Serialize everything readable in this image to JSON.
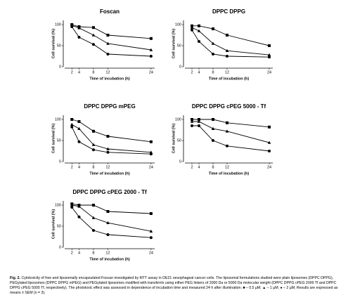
{
  "chart_data": [
    {
      "type": "line",
      "title": "Foscan",
      "xlabel": "Time of incubation (h)",
      "ylabel": "Cell survival (%)",
      "x": [
        2,
        4,
        8,
        12,
        24
      ],
      "xlim": [
        0,
        25
      ],
      "xticks": [
        2,
        4,
        8,
        12,
        24
      ],
      "ylim": [
        0,
        110
      ],
      "yticks": [
        0,
        50,
        100
      ],
      "series": [
        {
          "marker": "square",
          "color": "#000000",
          "values": [
            100,
            95,
            93,
            75,
            67
          ]
        },
        {
          "marker": "triangle",
          "color": "#000000",
          "values": [
            98,
            92,
            75,
            55,
            40
          ]
        },
        {
          "marker": "circle",
          "color": "#000000",
          "values": [
            95,
            70,
            53,
            30,
            25
          ]
        }
      ]
    },
    {
      "type": "line",
      "title": "DPPC DPPG",
      "xlabel": "Time of incubation (h)",
      "ylabel": "Cell survival (%)",
      "x": [
        2,
        4,
        8,
        12,
        24
      ],
      "xlim": [
        0,
        25
      ],
      "xticks": [
        2,
        4,
        8,
        12,
        24
      ],
      "ylim": [
        0,
        110
      ],
      "yticks": [
        0,
        50,
        100
      ],
      "series": [
        {
          "marker": "square",
          "color": "#000000",
          "values": [
            97,
            97,
            90,
            75,
            50
          ]
        },
        {
          "marker": "triangle",
          "color": "#000000",
          "values": [
            93,
            85,
            55,
            38,
            28
          ]
        },
        {
          "marker": "circle",
          "color": "#000000",
          "values": [
            87,
            60,
            30,
            25,
            23
          ]
        }
      ]
    },
    {
      "type": "line",
      "title": "DPPC DPPG mPEG",
      "xlabel": "Time of incubation (h)",
      "ylabel": "Cell survival (%)",
      "x": [
        2,
        4,
        8,
        12,
        24
      ],
      "xlim": [
        0,
        25
      ],
      "xticks": [
        2,
        4,
        8,
        12,
        24
      ],
      "ylim": [
        0,
        110
      ],
      "yticks": [
        0,
        50,
        100
      ],
      "series": [
        {
          "marker": "square",
          "color": "#000000",
          "values": [
            100,
            95,
            72,
            60,
            47
          ]
        },
        {
          "marker": "triangle",
          "color": "#000000",
          "values": [
            88,
            78,
            40,
            30,
            22
          ]
        },
        {
          "marker": "circle",
          "color": "#000000",
          "values": [
            82,
            47,
            28,
            22,
            18
          ]
        }
      ]
    },
    {
      "type": "line",
      "title": "DPPC DPPG cPEG 5000 - Tf",
      "xlabel": "Time of incubation (h)",
      "ylabel": "Cell survival (%)",
      "x": [
        2,
        4,
        8,
        12,
        24
      ],
      "xlim": [
        0,
        25
      ],
      "xticks": [
        2,
        4,
        8,
        12,
        24
      ],
      "ylim": [
        0,
        110
      ],
      "yticks": [
        0,
        50,
        100
      ],
      "series": [
        {
          "marker": "square",
          "color": "#000000",
          "values": [
            100,
            100,
            100,
            92,
            82
          ]
        },
        {
          "marker": "triangle",
          "color": "#000000",
          "values": [
            95,
            95,
            78,
            72,
            45
          ]
        },
        {
          "marker": "circle",
          "color": "#000000",
          "values": [
            85,
            85,
            50,
            37,
            25
          ]
        }
      ]
    },
    {
      "type": "line",
      "title": "DPPC DPPG cPEG 2000 - Tf",
      "xlabel": "Time of incubation (h)",
      "ylabel": "Cell survival (%)",
      "x": [
        2,
        4,
        8,
        12,
        24
      ],
      "xlim": [
        0,
        25
      ],
      "xticks": [
        2,
        4,
        8,
        12,
        24
      ],
      "ylim": [
        0,
        110
      ],
      "yticks": [
        0,
        50,
        100
      ],
      "series": [
        {
          "marker": "square",
          "color": "#000000",
          "values": [
            103,
            100,
            100,
            85,
            80
          ]
        },
        {
          "marker": "triangle",
          "color": "#000000",
          "values": [
            100,
            97,
            70,
            58,
            38
          ]
        },
        {
          "marker": "circle",
          "color": "#000000",
          "values": [
            95,
            72,
            40,
            30,
            23
          ]
        }
      ]
    }
  ],
  "caption": {
    "label": "Fig. 2.",
    "text": "Cytotoxicity of free and liposomally encapsulated Foscan investigated by MTT assay in OE21 oesophageal cancer cells. The liposomal formulations studied were plain liposomes (DPPC DPPG), PEGylated liposomes (DPPC DPPG mPEG) and PEGylated liposomes modified with transferrin using either PEG linkers of 2000 Da or 5000 Da molecular weight (DPPC DPPG cPEG 2000 Tf and DPPC DPPG cPEG 5000 Tf, respectively). The phototoxic effect was assessed in dependence of incubation time and measured 24 h after illumination; ■ – 0.5 µM; ▲ – 1 µM; ● – 2 µM; Results are expressed as means ± SEM (n = 3)."
  }
}
